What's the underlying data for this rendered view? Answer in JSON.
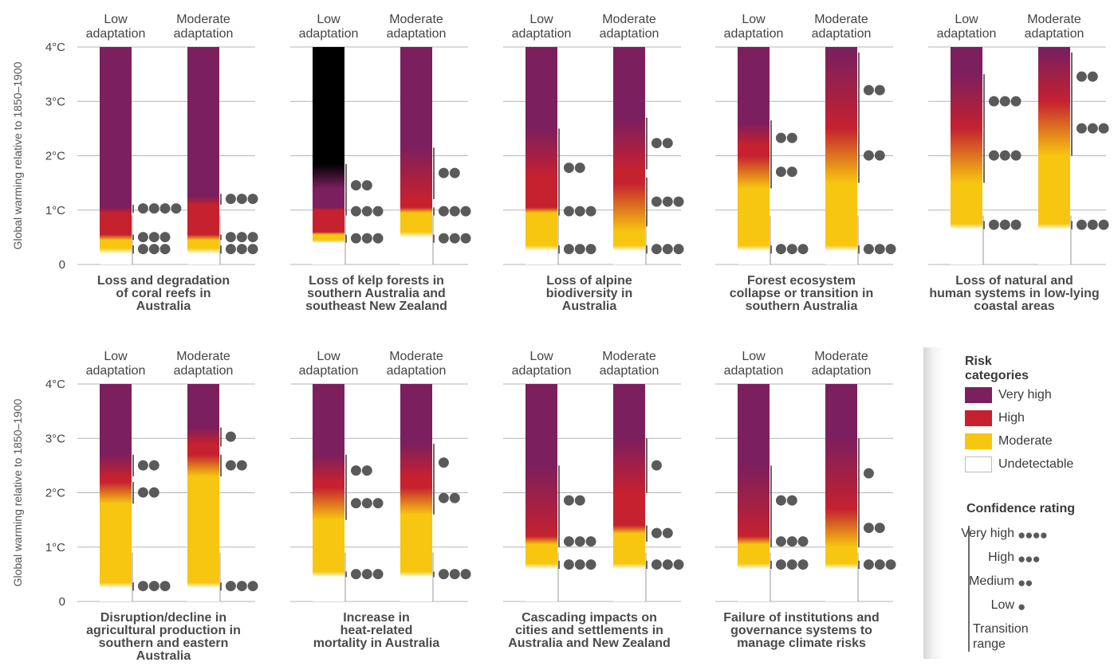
{
  "chart_data": {
    "type": "heatmap",
    "ylabel": "Global warming relative to 1850–1900",
    "yticks": [
      "0",
      "1°C",
      "2°C",
      "3°C",
      "4°C"
    ],
    "ylim": [
      0,
      4
    ],
    "colors": {
      "very_high": "#7c1f5e",
      "high": "#c5212f",
      "moderate": "#f7c611",
      "undetectable": "#ffffff"
    },
    "column_labels": [
      "Low",
      "adaptation",
      "Moderate",
      "adaptation"
    ],
    "panels": [
      {
        "title": [
          "Loss and degradation",
          "of coral reefs in",
          "Australia"
        ],
        "bars": [
          {
            "transitions": [
              [
                0.2,
                0.3
              ],
              [
                0.45,
                0.55
              ],
              [
                0.95,
                1.05
              ]
            ],
            "confidence": [
              {
                "from": 0.2,
                "to": 0.35,
                "dots": "●●●"
              },
              {
                "from": 0.45,
                "to": 0.55,
                "dots": "●●●"
              },
              {
                "from": 0.95,
                "to": 1.1,
                "dots": "●●●●"
              }
            ]
          },
          {
            "transitions": [
              [
                0.2,
                0.3
              ],
              [
                0.45,
                0.55
              ],
              [
                1.1,
                1.25
              ]
            ],
            "confidence": [
              {
                "from": 0.2,
                "to": 0.35,
                "dots": "●●●"
              },
              {
                "from": 0.45,
                "to": 0.55,
                "dots": "●●●"
              },
              {
                "from": 1.1,
                "to": 1.3,
                "dots": "●●●"
              }
            ]
          }
        ]
      },
      {
        "title": [
          "Loss of kelp forests in",
          "southern Australia and",
          "southeast New Zealand"
        ],
        "bars": [
          {
            "transitions": [
              [
                0.4,
                0.45
              ],
              [
                0.55,
                0.6
              ],
              [
                1.0,
                1.05
              ],
              [
                1.4,
                1.85
              ]
            ],
            "confidence": [
              {
                "from": 0.4,
                "to": 0.55,
                "dots": "●●●"
              },
              {
                "from": 0.9,
                "to": 1.05,
                "dots": "●●●"
              },
              {
                "from": 1.05,
                "to": 1.85,
                "dots": "●●"
              }
            ]
          },
          {
            "transitions": [
              [
                0.5,
                0.6
              ],
              [
                0.95,
                1.05
              ],
              [
                1.2,
                2.15
              ]
            ],
            "confidence": [
              {
                "from": 0.4,
                "to": 0.55,
                "dots": "●●●"
              },
              {
                "from": 0.9,
                "to": 1.05,
                "dots": "●●●"
              },
              {
                "from": 1.2,
                "to": 2.15,
                "dots": "●●"
              }
            ]
          }
        ]
      },
      {
        "title": [
          "Loss of alpine",
          "biodiversity in",
          "Australia"
        ],
        "bars": [
          {
            "transitions": [
              [
                0.25,
                0.35
              ],
              [
                0.95,
                1.05
              ],
              [
                1.6,
                2.5
              ]
            ],
            "confidence": [
              {
                "from": 0.2,
                "to": 0.35,
                "dots": "●●●"
              },
              {
                "from": 0.9,
                "to": 1.05,
                "dots": "●●●"
              },
              {
                "from": 1.05,
                "to": 2.5,
                "dots": "●●"
              }
            ]
          },
          {
            "transitions": [
              [
                0.25,
                0.35
              ],
              [
                0.6,
                1.5
              ],
              [
                1.75,
                2.65
              ]
            ],
            "confidence": [
              {
                "from": 0.2,
                "to": 0.35,
                "dots": "●●●"
              },
              {
                "from": 0.7,
                "to": 1.6,
                "dots": "●●●"
              },
              {
                "from": 1.75,
                "to": 2.7,
                "dots": "●●"
              }
            ]
          }
        ]
      },
      {
        "title": [
          "Forest ecosystem",
          "collapse or transition in",
          "southern Australia"
        ],
        "bars": [
          {
            "transitions": [
              [
                0.25,
                0.35
              ],
              [
                1.4,
                2.0
              ],
              [
                2.2,
                2.6
              ]
            ],
            "confidence": [
              {
                "from": 0.2,
                "to": 0.35,
                "dots": "●●●"
              },
              {
                "from": 1.4,
                "to": 2.0,
                "dots": "●●"
              },
              {
                "from": 2.0,
                "to": 2.65,
                "dots": "●●"
              }
            ]
          },
          {
            "transitions": [
              [
                0.25,
                0.35
              ],
              [
                1.5,
                2.5
              ],
              [
                2.5,
                3.9
              ]
            ],
            "confidence": [
              {
                "from": 0.2,
                "to": 0.35,
                "dots": "●●●"
              },
              {
                "from": 1.5,
                "to": 2.5,
                "dots": "●●"
              },
              {
                "from": 2.5,
                "to": 3.9,
                "dots": "●●"
              }
            ]
          }
        ]
      },
      {
        "title": [
          "Loss of natural and",
          "human systems in low-lying",
          "coastal areas"
        ],
        "bars": [
          {
            "transitions": [
              [
                0.65,
                0.75
              ],
              [
                1.5,
                2.5
              ],
              [
                2.5,
                3.5
              ]
            ],
            "confidence": [
              {
                "from": 0.65,
                "to": 0.8,
                "dots": "●●●"
              },
              {
                "from": 1.5,
                "to": 2.5,
                "dots": "●●●"
              },
              {
                "from": 2.5,
                "to": 3.5,
                "dots": "●●●"
              }
            ]
          },
          {
            "transitions": [
              [
                0.65,
                0.75
              ],
              [
                2.0,
                3.0
              ],
              [
                3.0,
                3.9
              ]
            ],
            "confidence": [
              {
                "from": 0.65,
                "to": 0.8,
                "dots": "●●●"
              },
              {
                "from": 2.0,
                "to": 3.0,
                "dots": "●●●"
              },
              {
                "from": 3.0,
                "to": 3.9,
                "dots": "●●"
              }
            ]
          }
        ]
      },
      {
        "title": [
          "Disruption/decline in",
          "agricultural production in",
          "southern and eastern",
          "Australia"
        ],
        "bars": [
          {
            "transitions": [
              [
                0.25,
                0.35
              ],
              [
                1.8,
                2.2
              ],
              [
                2.3,
                2.7
              ]
            ],
            "confidence": [
              {
                "from": 0.2,
                "to": 0.35,
                "dots": "●●●"
              },
              {
                "from": 1.8,
                "to": 2.2,
                "dots": "●●"
              },
              {
                "from": 2.3,
                "to": 2.7,
                "dots": "●●"
              }
            ]
          },
          {
            "transitions": [
              [
                0.25,
                0.35
              ],
              [
                2.3,
                2.7
              ],
              [
                2.9,
                3.2
              ]
            ],
            "confidence": [
              {
                "from": 0.2,
                "to": 0.35,
                "dots": "●●●"
              },
              {
                "from": 2.3,
                "to": 2.7,
                "dots": "●●"
              },
              {
                "from": 2.85,
                "to": 3.2,
                "dots": "●"
              }
            ]
          }
        ]
      },
      {
        "title": [
          "Increase in",
          "heat-related",
          "mortality in Australia"
        ],
        "bars": [
          {
            "transitions": [
              [
                0.45,
                0.55
              ],
              [
                1.5,
                2.1
              ],
              [
                2.2,
                2.7
              ]
            ],
            "confidence": [
              {
                "from": 0.45,
                "to": 0.55,
                "dots": "●●●"
              },
              {
                "from": 1.5,
                "to": 2.1,
                "dots": "●●●"
              },
              {
                "from": 2.1,
                "to": 2.7,
                "dots": "●●"
              }
            ]
          },
          {
            "transitions": [
              [
                0.45,
                0.55
              ],
              [
                1.6,
                2.1
              ],
              [
                2.3,
                2.9
              ]
            ],
            "confidence": [
              {
                "from": 0.45,
                "to": 0.55,
                "dots": "●●●"
              },
              {
                "from": 1.6,
                "to": 2.2,
                "dots": "●●"
              },
              {
                "from": 2.2,
                "to": 2.9,
                "dots": "●"
              }
            ]
          }
        ]
      },
      {
        "title": [
          "Cascading impacts on",
          "cities and settlements in",
          "Australia and New Zealand"
        ],
        "bars": [
          {
            "transitions": [
              [
                0.6,
                0.7
              ],
              [
                1.05,
                1.2
              ],
              [
                1.2,
                2.5
              ]
            ],
            "confidence": [
              {
                "from": 0.6,
                "to": 0.75,
                "dots": "●●●"
              },
              {
                "from": 1.0,
                "to": 1.2,
                "dots": "●●●"
              },
              {
                "from": 1.2,
                "to": 2.5,
                "dots": "●●"
              }
            ]
          },
          {
            "transitions": [
              [
                0.6,
                0.7
              ],
              [
                1.25,
                1.4
              ],
              [
                2.0,
                3.0
              ]
            ],
            "confidence": [
              {
                "from": 0.6,
                "to": 0.75,
                "dots": "●●●"
              },
              {
                "from": 1.1,
                "to": 1.4,
                "dots": "●●"
              },
              {
                "from": 2.0,
                "to": 3.0,
                "dots": "●"
              }
            ]
          }
        ]
      },
      {
        "title": [
          "Failure of institutions and",
          "governance systems to",
          "manage climate risks"
        ],
        "bars": [
          {
            "transitions": [
              [
                0.6,
                0.7
              ],
              [
                1.05,
                1.2
              ],
              [
                1.2,
                2.5
              ]
            ],
            "confidence": [
              {
                "from": 0.6,
                "to": 0.75,
                "dots": "●●●"
              },
              {
                "from": 1.0,
                "to": 1.2,
                "dots": "●●●"
              },
              {
                "from": 1.2,
                "to": 2.5,
                "dots": "●●"
              }
            ]
          },
          {
            "transitions": [
              [
                0.6,
                0.7
              ],
              [
                1.0,
                1.7
              ],
              [
                1.7,
                3.0
              ]
            ],
            "confidence": [
              {
                "from": 0.6,
                "to": 0.75,
                "dots": "●●●"
              },
              {
                "from": 1.0,
                "to": 1.7,
                "dots": "●●"
              },
              {
                "from": 1.7,
                "to": 3.0,
                "dots": "●"
              }
            ]
          }
        ]
      }
    ]
  },
  "legend": {
    "risk_title_1": "Risk",
    "risk_title_2": "categories",
    "very_high": "Very high",
    "high": "High",
    "moderate": "Moderate",
    "undetectable": "Undetectable",
    "confidence_title": "Confidence rating",
    "conf_very_high": "Very high",
    "conf_very_high_dots": "●●●●",
    "conf_high": "High",
    "conf_high_dots": "●●●",
    "conf_medium": "Medium",
    "conf_medium_dots": "●●",
    "conf_low": "Low",
    "conf_low_dots": "●",
    "transition_1": "Transition",
    "transition_2": "range"
  }
}
